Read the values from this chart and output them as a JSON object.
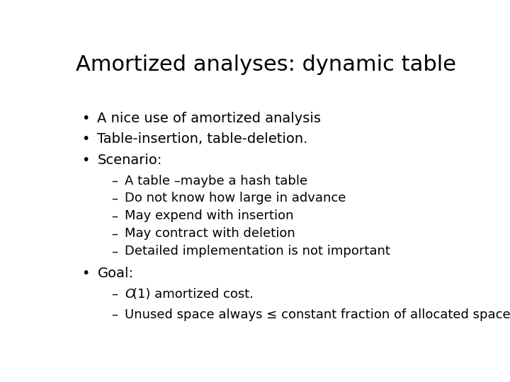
{
  "title": "Amortized analyses: dynamic table",
  "background_color": "#ffffff",
  "title_fontsize": 22,
  "bullet_color": "#000000",
  "bullet1": "A nice use of amortized analysis",
  "bullet2": "Table-insertion, table-deletion.",
  "bullet3": "Scenario:",
  "sub_bullets": [
    "A table –maybe a hash table",
    "Do not know how large in advance",
    "May expend with insertion",
    "May contract with deletion",
    "Detailed implementation is not important"
  ],
  "bullet4": "Goal:",
  "goal_sub1_prefix": "–  ",
  "goal_sub1_italic": "O",
  "goal_sub1_rest": "(1) amortized cost.",
  "goal_sub2": "Unused space always ≤ constant fraction of allocated space.",
  "main_fontsize": 14,
  "sub_fontsize": 13,
  "dash": "–"
}
